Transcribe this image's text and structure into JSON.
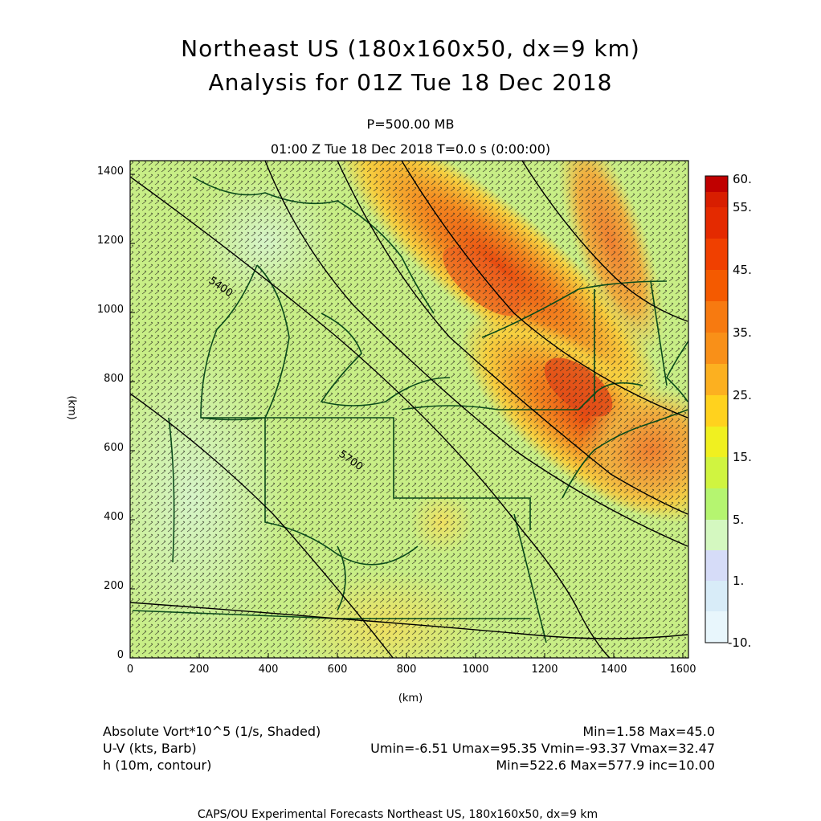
{
  "title_line1": "Northeast US (180x160x50, dx=9 km)",
  "title_line2": "Analysis for 01Z Tue 18 Dec 2018",
  "level": "P=500.00 MB",
  "valid_time": "01:00 Z Tue 18 Dec 2018    T=0.0 s (0:00:00)",
  "axes": {
    "x_unit": "(km)",
    "y_unit": "(km)",
    "x_ticks": [
      "0",
      "200",
      "400",
      "600",
      "800",
      "1000",
      "1200",
      "1400",
      "1600"
    ],
    "y_ticks": [
      "0",
      "200",
      "400",
      "600",
      "800",
      "1000",
      "1200",
      "1400"
    ]
  },
  "colorbar": {
    "labels": [
      "60.",
      "55.",
      "45.",
      "35.",
      "25.",
      "15.",
      "5.",
      "1.",
      "-10."
    ],
    "colors": [
      "#c00000",
      "#d81e00",
      "#ee3a00",
      "#f45a00",
      "#f98a10",
      "#ffad20",
      "#ffd21e",
      "#f0f020",
      "#d2f53a",
      "#b5f570",
      "#d4f8c0",
      "#d6dcf8",
      "#d8ecf8",
      "#e8f6fc"
    ]
  },
  "contour_labels": [
    "5400",
    "5700"
  ],
  "legend": {
    "field1": "Absolute Vort*10^5 (1/s, Shaded)",
    "field1_stats": "Min=1.58 Max=45.0",
    "field2": "U-V (kts, Barb)",
    "field2_stats": "Umin=-6.51 Umax=95.35 Vmin=-93.37 Vmax=32.47",
    "field3": "h (10m, contour)",
    "field3_stats": "Min=522.6 Max=577.9 inc=10.00"
  },
  "footer": "CAPS/OU Experimental Forecasts  Northeast US, 180x160x50, dx=9 km"
}
